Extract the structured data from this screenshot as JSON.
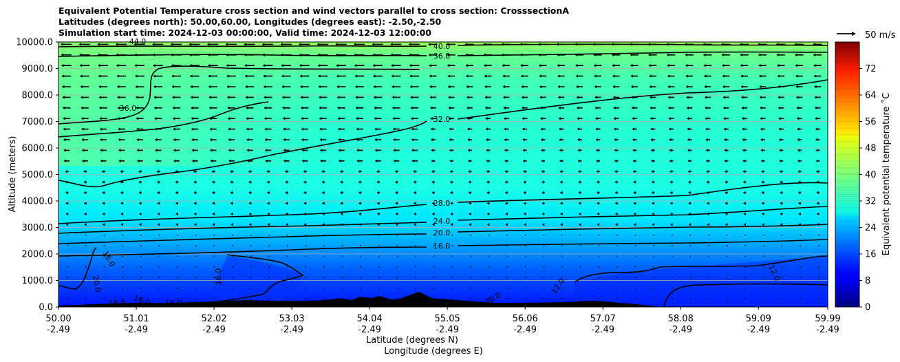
{
  "titles": [
    "Equivalent Potential Temperature cross section and wind vectors parallel to cross section: CrosssectionA",
    "Latitudes (degrees north): 50.00,60.00, Longitudes (degrees east): -2.50,-2.50",
    "Simulation start time: 2024-12-03 00:00:00, Valid time: 2024-12-03 12:00:00"
  ],
  "chart_data": {
    "type": "contour",
    "ylabel": "Altitude (meters)",
    "xlabel_lat": "Latitude (degrees N)",
    "xlabel_lon": "Longitude (degrees E)",
    "colorbar_label": "Equivalent potential temperature $^\\circ$C",
    "colorbar_label_display": "Equivalent potential temperature ˚C",
    "quiver_key_label": "50 m/s",
    "ylim": [
      0,
      10000
    ],
    "y_ticks": [
      "0.0",
      "1000.0",
      "2000.0",
      "3000.0",
      "4000.0",
      "5000.0",
      "6000.0",
      "7000.0",
      "8000.0",
      "9000.0",
      "10000.0"
    ],
    "x_ticks_lat": [
      "50.00",
      "51.01",
      "52.02",
      "53.03",
      "54.04",
      "55.05",
      "56.06",
      "57.07",
      "58.08",
      "59.09",
      "59.99"
    ],
    "x_ticks_lon": [
      "-2.49",
      "-2.49",
      "-2.49",
      "-2.49",
      "-2.49",
      "-2.49",
      "-2.49",
      "-2.49",
      "-2.49",
      "-2.49",
      "-2.49"
    ],
    "colorbar_range": [
      0,
      80
    ],
    "colorbar_ticks": [
      "0",
      "8",
      "16",
      "24",
      "32",
      "40",
      "48",
      "56",
      "64",
      "72"
    ],
    "contour_labels": [
      "40.0",
      "36.0",
      "32.0",
      "28.0",
      "24.0",
      "20.0",
      "16.0",
      "44.0",
      "36.0",
      "16.0",
      "20.0",
      "16.0",
      "16.0",
      "16.0",
      "16.0",
      "12.0",
      "20.0",
      "12.0"
    ],
    "grid": true
  }
}
